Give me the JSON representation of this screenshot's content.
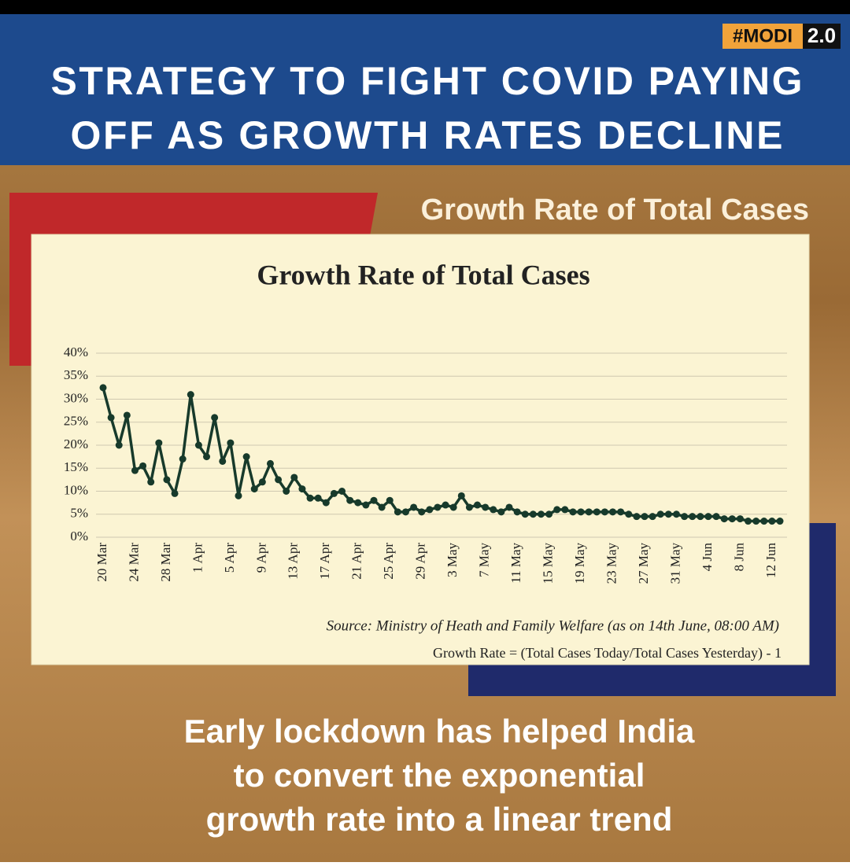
{
  "header": {
    "badge": "#MODI",
    "badge_version": "2.0",
    "title_lines": [
      "STRATEGY TO FIGHT COVID PAYING",
      "OFF AS GROWTH RATES DECLINE"
    ]
  },
  "banner": "Growth Rate of Total Cases",
  "chart_data": {
    "type": "line",
    "title": "Growth Rate of Total Cases",
    "color": "#173a2b",
    "grid": true,
    "categories": [
      "20 Mar",
      null,
      null,
      null,
      "24 Mar",
      null,
      null,
      null,
      "28 Mar",
      null,
      null,
      null,
      "1 Apr",
      null,
      null,
      null,
      "5 Apr",
      null,
      null,
      null,
      "9 Apr",
      null,
      null,
      null,
      "13 Apr",
      null,
      null,
      null,
      "17 Apr",
      null,
      null,
      null,
      "21 Apr",
      null,
      null,
      null,
      "25 Apr",
      null,
      null,
      null,
      "29 Apr",
      null,
      null,
      null,
      "3 May",
      null,
      null,
      null,
      "7 May",
      null,
      null,
      null,
      "11 May",
      null,
      null,
      null,
      "15 May",
      null,
      null,
      null,
      "19 May",
      null,
      null,
      null,
      "23 May",
      null,
      null,
      null,
      "27 May",
      null,
      null,
      null,
      "31 May",
      null,
      null,
      null,
      "4 Jun",
      null,
      null,
      null,
      "8 Jun",
      null,
      null,
      null,
      "12 Jun",
      null
    ],
    "values": [
      32.5,
      26,
      20,
      26.5,
      14.5,
      15.5,
      12,
      20.5,
      12.5,
      9.5,
      17,
      31,
      20,
      17.5,
      26,
      16.5,
      20.5,
      9,
      17.5,
      10.5,
      12,
      16,
      12.5,
      10,
      13,
      10.5,
      8.5,
      8.5,
      7.5,
      9.5,
      10,
      8,
      7.5,
      7,
      8,
      6.5,
      8,
      5.5,
      5.5,
      6.5,
      5.5,
      6,
      6.5,
      7,
      6.5,
      9,
      6.5,
      7,
      6.5,
      6,
      5.5,
      6.5,
      5.5,
      5,
      5,
      5,
      5,
      6,
      6,
      5.5,
      5.5,
      5.5,
      5.5,
      5.5,
      5.5,
      5.5,
      5,
      4.5,
      4.5,
      4.5,
      5,
      5,
      5,
      4.5,
      4.5,
      4.5,
      4.5,
      4.5,
      4,
      4,
      4,
      3.5,
      3.5,
      3.5,
      3.5,
      3.5
    ],
    "ylim": [
      0,
      40
    ],
    "yticks": [
      {
        "value": 0,
        "label": "0%"
      },
      {
        "value": 5,
        "label": "5%"
      },
      {
        "value": 10,
        "label": "10%"
      },
      {
        "value": 15,
        "label": "15%"
      },
      {
        "value": 20,
        "label": "20%"
      },
      {
        "value": 25,
        "label": "25%"
      },
      {
        "value": 30,
        "label": "30%"
      },
      {
        "value": 35,
        "label": "35%"
      },
      {
        "value": 40,
        "label": "40%"
      }
    ],
    "source": "Source: Ministry of Heath and Family Welfare (as on 14th June, 08:00 AM)",
    "note": "Growth Rate = (Total Cases Today/Total Cases Yesterday) - 1"
  },
  "footer": {
    "lines": [
      "Early lockdown has helped India",
      "to convert the exponential",
      "growth rate into a linear trend"
    ]
  }
}
